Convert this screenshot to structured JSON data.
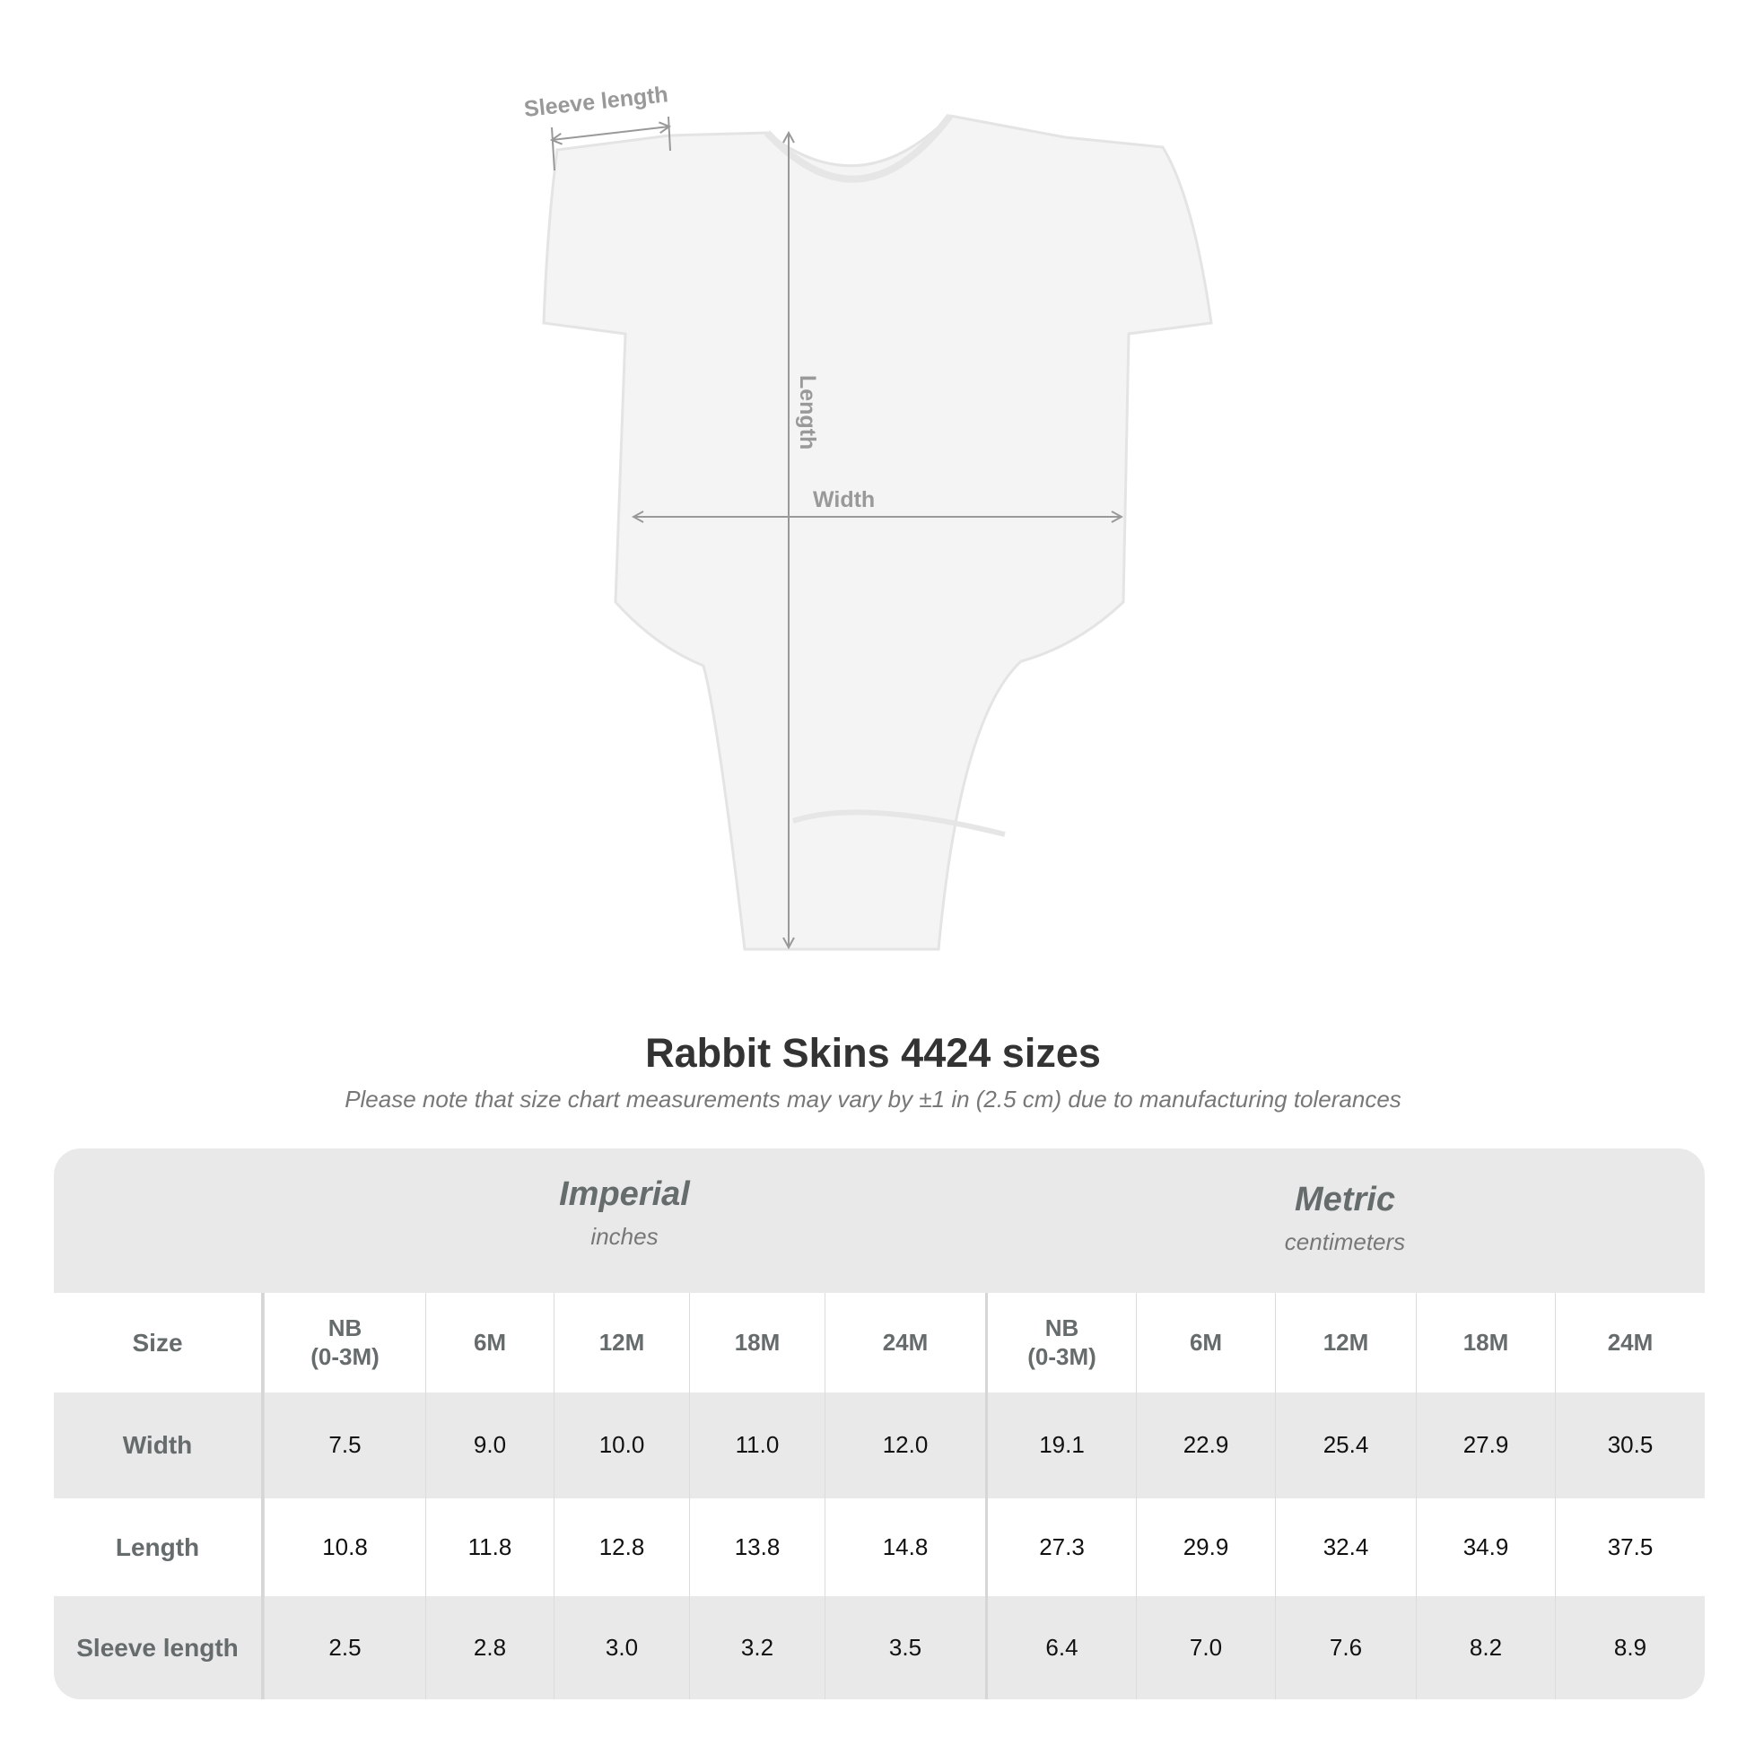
{
  "diagram": {
    "labels": {
      "sleeve": "Sleeve length",
      "length": "Length",
      "width": "Width"
    },
    "colors": {
      "arrow": "#999999",
      "garment": "#f4f4f4"
    }
  },
  "title": "Rabbit Skins 4424 sizes",
  "subtitle": "Please note that size chart measurements may vary by ±1 in (2.5 cm) due to manufacturing tolerances",
  "table": {
    "groups": [
      {
        "name": "Imperial",
        "unit": "inches"
      },
      {
        "name": "Metric",
        "unit": "centimeters"
      }
    ],
    "size_label": "Size",
    "sizes": [
      "NB\n(0-3M)",
      "6M",
      "12M",
      "18M",
      "24M",
      "NB\n(0-3M)",
      "6M",
      "12M",
      "18M",
      "24M"
    ],
    "rows": [
      {
        "label": "Width",
        "values": [
          "7.5",
          "9.0",
          "10.0",
          "11.0",
          "12.0",
          "19.1",
          "22.9",
          "25.4",
          "27.9",
          "30.5"
        ]
      },
      {
        "label": "Length",
        "values": [
          "10.8",
          "11.8",
          "12.8",
          "13.8",
          "14.8",
          "27.3",
          "29.9",
          "32.4",
          "34.9",
          "37.5"
        ]
      },
      {
        "label": "Sleeve length",
        "values": [
          "2.5",
          "2.8",
          "3.0",
          "3.2",
          "3.5",
          "6.4",
          "7.0",
          "7.6",
          "8.2",
          "8.9"
        ]
      }
    ]
  }
}
